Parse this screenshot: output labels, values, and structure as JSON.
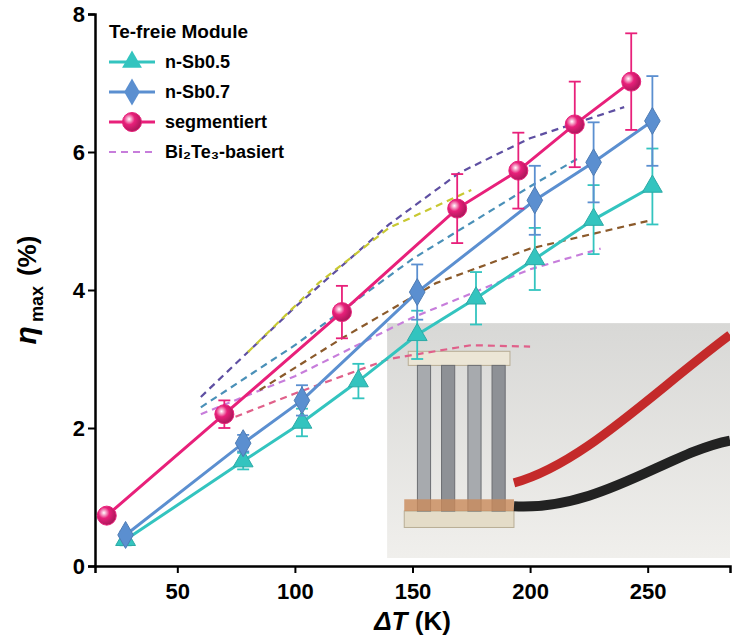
{
  "chart_data": {
    "type": "line",
    "xlabel": {
      "symbol": "ΔT",
      "unit": "(K)"
    },
    "ylabel": {
      "symbol": "η",
      "subscript": "max",
      "unit": "(%)"
    },
    "legend_title": "Te-freie Module",
    "legend": "upper left",
    "xlim": [
      15,
      285
    ],
    "ylim": [
      0,
      8
    ],
    "xticks": [
      50,
      100,
      150,
      200,
      250
    ],
    "yticks": [
      0,
      2,
      4,
      6,
      8
    ],
    "grid": false,
    "series": [
      {
        "name": "n-Sb0.5",
        "color": "#33c4bf",
        "marker": "triangle",
        "line_style": "solid",
        "x": [
          28,
          78,
          103,
          127,
          152,
          177,
          202,
          227,
          252
        ],
        "values": [
          0.38,
          1.52,
          2.08,
          2.68,
          3.35,
          3.88,
          4.45,
          5.02,
          5.5
        ],
        "errors": [
          0.08,
          0.12,
          0.2,
          0.25,
          0.35,
          0.38,
          0.45,
          0.5,
          0.55
        ]
      },
      {
        "name": "n-Sb0.7",
        "color": "#5b8fd0",
        "marker": "diamond",
        "line_style": "solid",
        "x": [
          28,
          78,
          103,
          152,
          202,
          227,
          252
        ],
        "values": [
          0.45,
          1.78,
          2.4,
          3.97,
          5.3,
          5.85,
          6.45
        ],
        "errors": [
          0.05,
          0.12,
          0.22,
          0.4,
          0.5,
          0.58,
          0.65
        ]
      },
      {
        "name": "segmentiert",
        "color": "#e8207a",
        "marker": "circle",
        "line_style": "solid",
        "x": [
          20,
          70,
          120,
          169,
          195,
          219,
          243
        ],
        "values": [
          0.73,
          2.2,
          3.68,
          5.18,
          5.73,
          6.4,
          7.02
        ],
        "errors": [
          0.05,
          0.2,
          0.38,
          0.5,
          0.55,
          0.62,
          0.7
        ]
      },
      {
        "name": "Bi₂Te₃-basiert",
        "color": "#c77ddb",
        "marker": "none",
        "line_style": "dashed",
        "x": [
          60,
          100,
          150,
          200,
          230
        ],
        "values": [
          2.2,
          2.75,
          3.6,
          4.3,
          4.6
        ]
      },
      {
        "color": "#5e4fa2",
        "marker": "none",
        "line_style": "dashed",
        "x": [
          60,
          100,
          140,
          170,
          200,
          240
        ],
        "values": [
          2.45,
          3.75,
          4.95,
          5.7,
          6.2,
          6.65
        ]
      },
      {
        "color": "#c8c832",
        "marker": "none",
        "line_style": "dashed",
        "x": [
          80,
          110,
          140,
          175
        ],
        "values": [
          3.1,
          4.1,
          4.9,
          5.45
        ]
      },
      {
        "color": "#4a90b8",
        "marker": "none",
        "line_style": "dashed",
        "x": [
          60,
          100,
          150,
          200,
          220
        ],
        "values": [
          2.3,
          3.2,
          4.45,
          5.5,
          5.9
        ]
      },
      {
        "color": "#8b5a2b",
        "marker": "none",
        "line_style": "dashed",
        "x": [
          85,
          120,
          160,
          200,
          250
        ],
        "values": [
          2.55,
          3.3,
          4.1,
          4.6,
          5.0
        ]
      },
      {
        "color": "#e0608a",
        "marker": "none",
        "line_style": "dashed",
        "x": [
          70,
          100,
          140,
          175,
          200
        ],
        "values": [
          2.1,
          2.5,
          3.0,
          3.2,
          3.18
        ]
      }
    ]
  }
}
